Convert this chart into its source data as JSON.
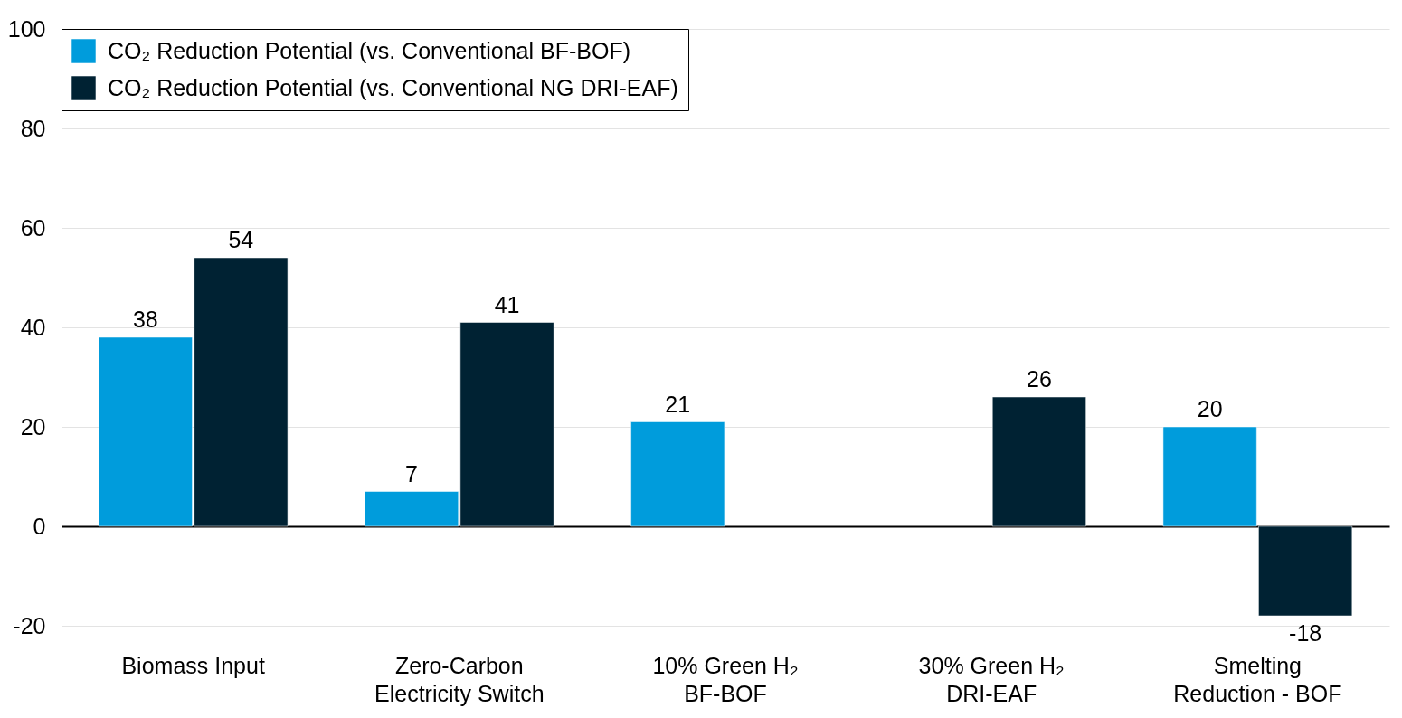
{
  "chart_data": {
    "type": "bar",
    "categories": [
      "Biomass Input",
      "Zero-Carbon Electricity Switch",
      "10% Green H₂ BF-BOF",
      "30% Green H₂ DRI-EAF",
      "Smelting Reduction - BOF"
    ],
    "series": [
      {
        "name": "CO₂ Reduction Potential (vs. Conventional BF-BOF)",
        "color": "#009cdc",
        "values": [
          38,
          7,
          21,
          null,
          20
        ]
      },
      {
        "name": "CO₂ Reduction Potential (vs. Conventional NG DRI-EAF)",
        "color": "#002233",
        "values": [
          54,
          41,
          null,
          26,
          -18
        ]
      }
    ],
    "ylim": [
      -20,
      100
    ],
    "yticks": [
      -20,
      0,
      20,
      40,
      60,
      80,
      100
    ],
    "grid": "y",
    "legend": "top left",
    "data_labels": true
  }
}
